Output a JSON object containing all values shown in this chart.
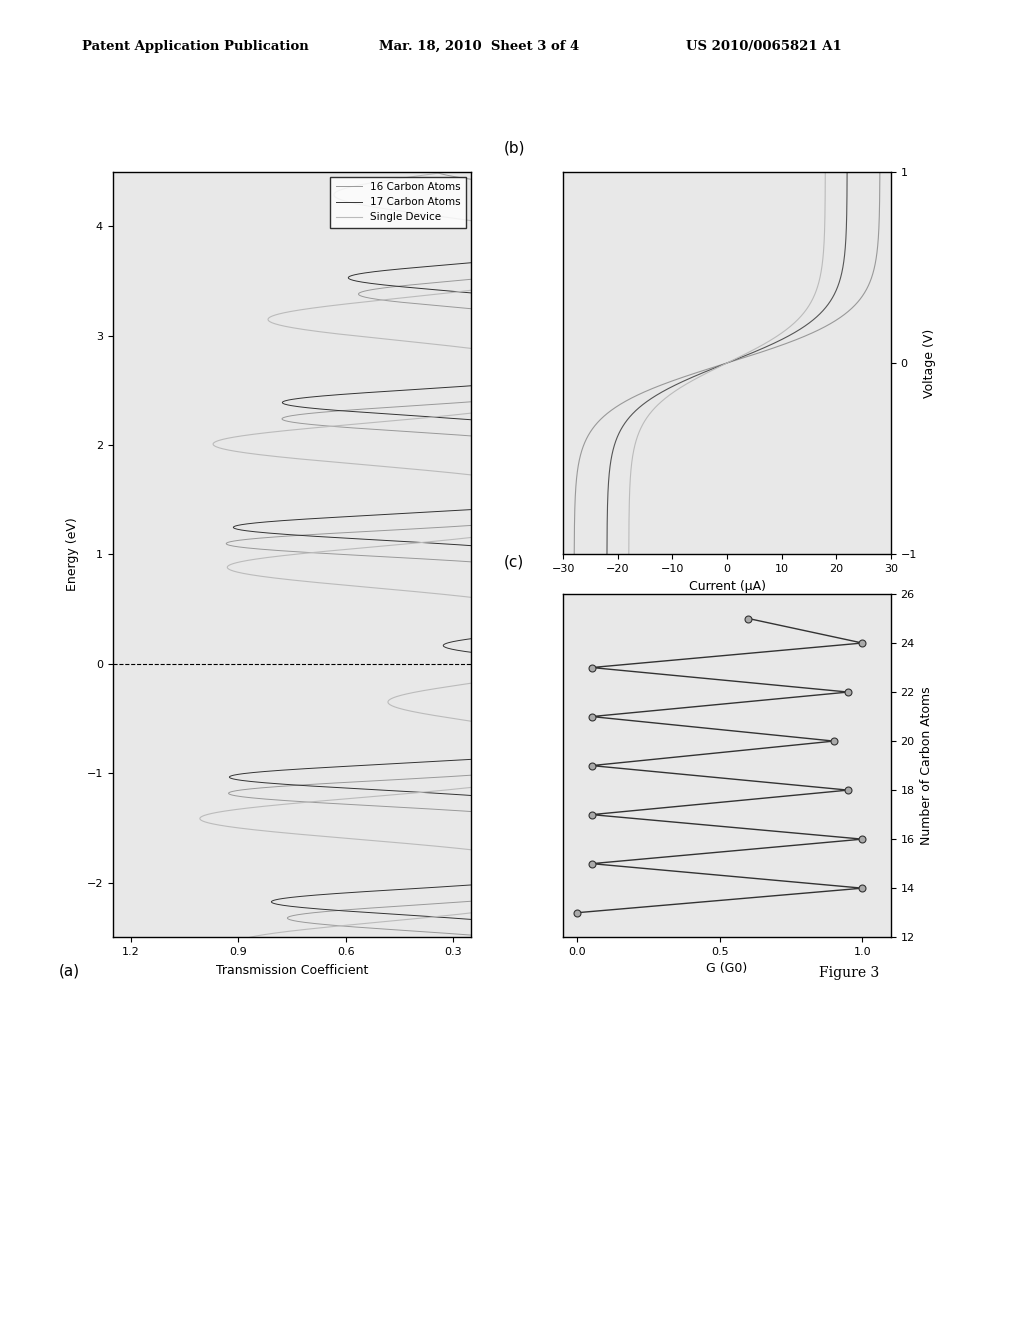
{
  "header_left": "Patent Application Publication",
  "header_mid": "Mar. 18, 2010  Sheet 3 of 4",
  "header_right": "US 2010/0065821 A1",
  "figure_label": "Figure 3",
  "bg_color": "#ffffff",
  "plot_bg": "#e8e8e8",
  "panel_a": {
    "label": "(a)",
    "ylabel": "Energy (eV)",
    "xlabel": "Transmission Coefficient",
    "ylim": [
      -2.5,
      4.5
    ],
    "xlim": [
      0.0,
      1.25
    ],
    "yticks": [
      -2,
      -1,
      0,
      1,
      2,
      3,
      4
    ],
    "xticks": [
      0.3,
      0.6,
      0.9,
      1.2
    ],
    "legend": [
      "16 Carbon Atoms",
      "17 Carbon Atoms",
      "Single Device"
    ],
    "line_colors": [
      "#999999",
      "#333333",
      "#bbbbbb"
    ],
    "dashed_y": 0.0
  },
  "panel_b": {
    "label": "(b)",
    "ylabel": "Voltage (V)",
    "xlabel": "Current (μA)",
    "ylim": [
      -1,
      1
    ],
    "xlim": [
      -30,
      30
    ],
    "yticks": [
      -1,
      0,
      1
    ],
    "xticks": [
      -30,
      -20,
      -10,
      0,
      10,
      20,
      30
    ],
    "line_colors": [
      "#999999",
      "#555555",
      "#bbbbbb"
    ]
  },
  "panel_c": {
    "label": "(c)",
    "ylabel": "Number of Carbon Atoms",
    "xlabel": "G (G0)",
    "ylim": [
      12,
      26
    ],
    "xlim": [
      -0.05,
      1.1
    ],
    "yticks": [
      12,
      14,
      16,
      18,
      20,
      22,
      24,
      26
    ],
    "xticks": [
      0,
      0.5,
      1
    ],
    "x_data": [
      0.0,
      1.0,
      0.05,
      1.0,
      0.05,
      0.95,
      0.05,
      0.9,
      0.05,
      0.95,
      0.05,
      1.0,
      0.6
    ],
    "y_data": [
      13,
      14,
      15,
      16,
      17,
      18,
      19,
      20,
      21,
      22,
      23,
      24,
      25
    ],
    "line_color": "#333333",
    "marker": "o",
    "marker_facecolor": "#aaaaaa",
    "marker_edgecolor": "#333333"
  }
}
